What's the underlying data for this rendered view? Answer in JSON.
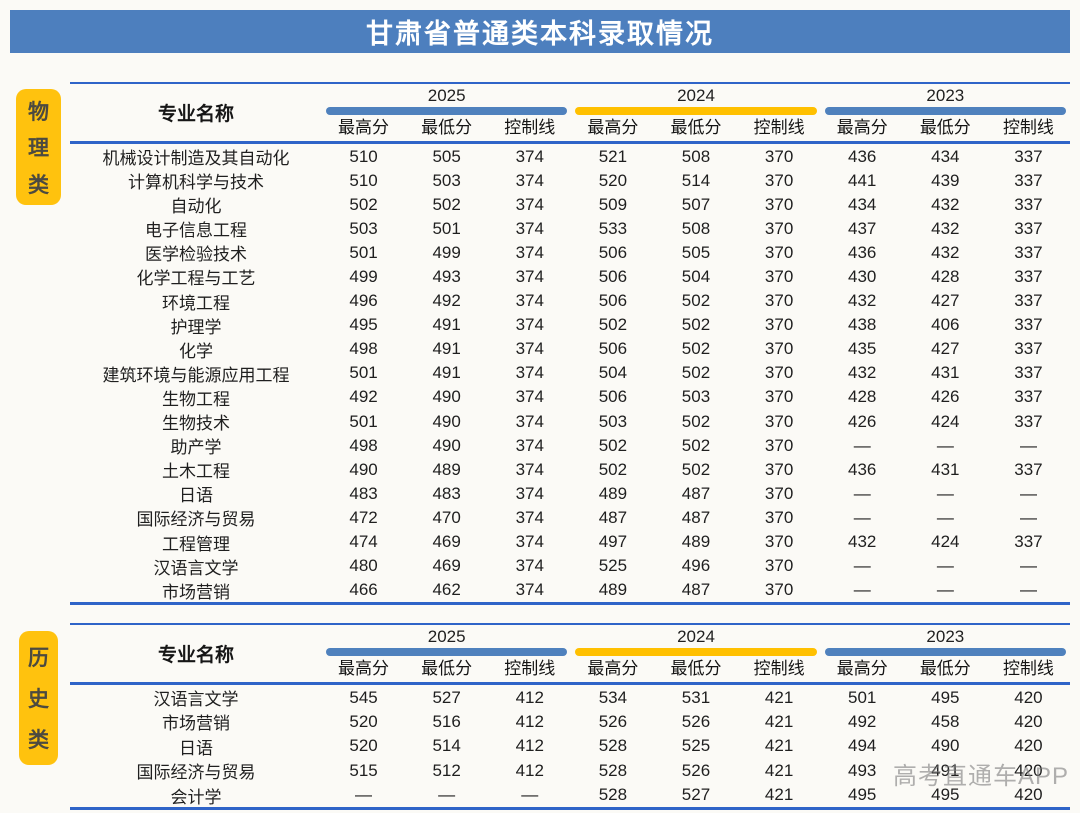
{
  "title": "甘肃省普通类本科录取情况",
  "watermark": "高考直通车APP",
  "colors": {
    "banner_blue": "#4d7fbe",
    "bar_blue": "#4f81bd",
    "bar_yellow": "#ffc000",
    "line_blue": "#2f64c8",
    "badge_yellow": "#ffc20e",
    "text_dark": "#1f1f1f"
  },
  "sections": [
    {
      "category": "物理类",
      "category_chars": [
        "物",
        "理",
        "类"
      ],
      "name_header": "专业名称",
      "years": [
        "2025",
        "2024",
        "2023"
      ],
      "sub_headers": [
        "最高分",
        "最低分",
        "控制线"
      ],
      "rows": [
        {
          "name": "机械设计制造及其自动化",
          "values": [
            "510",
            "505",
            "374",
            "521",
            "508",
            "370",
            "436",
            "434",
            "337"
          ]
        },
        {
          "name": "计算机科学与技术",
          "values": [
            "510",
            "503",
            "374",
            "520",
            "514",
            "370",
            "441",
            "439",
            "337"
          ]
        },
        {
          "name": "自动化",
          "values": [
            "502",
            "502",
            "374",
            "509",
            "507",
            "370",
            "434",
            "432",
            "337"
          ]
        },
        {
          "name": "电子信息工程",
          "values": [
            "503",
            "501",
            "374",
            "533",
            "508",
            "370",
            "437",
            "432",
            "337"
          ]
        },
        {
          "name": "医学检验技术",
          "values": [
            "501",
            "499",
            "374",
            "506",
            "505",
            "370",
            "436",
            "432",
            "337"
          ]
        },
        {
          "name": "化学工程与工艺",
          "values": [
            "499",
            "493",
            "374",
            "506",
            "504",
            "370",
            "430",
            "428",
            "337"
          ]
        },
        {
          "name": "环境工程",
          "values": [
            "496",
            "492",
            "374",
            "506",
            "502",
            "370",
            "432",
            "427",
            "337"
          ]
        },
        {
          "name": "护理学",
          "values": [
            "495",
            "491",
            "374",
            "502",
            "502",
            "370",
            "438",
            "406",
            "337"
          ]
        },
        {
          "name": "化学",
          "values": [
            "498",
            "491",
            "374",
            "506",
            "502",
            "370",
            "435",
            "427",
            "337"
          ]
        },
        {
          "name": "建筑环境与能源应用工程",
          "values": [
            "501",
            "491",
            "374",
            "504",
            "502",
            "370",
            "432",
            "431",
            "337"
          ]
        },
        {
          "name": "生物工程",
          "values": [
            "492",
            "490",
            "374",
            "506",
            "503",
            "370",
            "428",
            "426",
            "337"
          ]
        },
        {
          "name": "生物技术",
          "values": [
            "501",
            "490",
            "374",
            "503",
            "502",
            "370",
            "426",
            "424",
            "337"
          ]
        },
        {
          "name": "助产学",
          "values": [
            "498",
            "490",
            "374",
            "502",
            "502",
            "370",
            "—",
            "—",
            "—"
          ]
        },
        {
          "name": "土木工程",
          "values": [
            "490",
            "489",
            "374",
            "502",
            "502",
            "370",
            "436",
            "431",
            "337"
          ]
        },
        {
          "name": "日语",
          "values": [
            "483",
            "483",
            "374",
            "489",
            "487",
            "370",
            "—",
            "—",
            "—"
          ]
        },
        {
          "name": "国际经济与贸易",
          "values": [
            "472",
            "470",
            "374",
            "487",
            "487",
            "370",
            "—",
            "—",
            "—"
          ]
        },
        {
          "name": "工程管理",
          "values": [
            "474",
            "469",
            "374",
            "497",
            "489",
            "370",
            "432",
            "424",
            "337"
          ]
        },
        {
          "name": "汉语言文学",
          "values": [
            "480",
            "469",
            "374",
            "525",
            "496",
            "370",
            "—",
            "—",
            "—"
          ]
        },
        {
          "name": "市场营销",
          "values": [
            "466",
            "462",
            "374",
            "489",
            "487",
            "370",
            "—",
            "—",
            "—"
          ]
        }
      ]
    },
    {
      "category": "历史类",
      "category_chars": [
        "历",
        "史",
        "类"
      ],
      "name_header": "专业名称",
      "years": [
        "2025",
        "2024",
        "2023"
      ],
      "sub_headers": [
        "最高分",
        "最低分",
        "控制线"
      ],
      "rows": [
        {
          "name": "汉语言文学",
          "values": [
            "545",
            "527",
            "412",
            "534",
            "531",
            "421",
            "501",
            "495",
            "420"
          ]
        },
        {
          "name": "市场营销",
          "values": [
            "520",
            "516",
            "412",
            "526",
            "526",
            "421",
            "492",
            "458",
            "420"
          ]
        },
        {
          "name": "日语",
          "values": [
            "520",
            "514",
            "412",
            "528",
            "525",
            "421",
            "494",
            "490",
            "420"
          ]
        },
        {
          "name": "国际经济与贸易",
          "values": [
            "515",
            "512",
            "412",
            "528",
            "526",
            "421",
            "493",
            "491",
            "420"
          ]
        },
        {
          "name": "会计学",
          "values": [
            "—",
            "—",
            "—",
            "528",
            "527",
            "421",
            "495",
            "495",
            "420"
          ]
        }
      ]
    }
  ]
}
